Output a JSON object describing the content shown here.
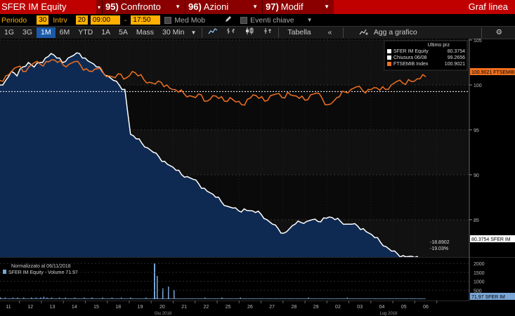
{
  "titlebar": {
    "ticker": "SFER IM Equity",
    "menu1_num": "95)",
    "menu1_label": "Confronto",
    "menu2_num": "96)",
    "menu2_label": "Azioni",
    "menu3_num": "97)",
    "menu3_label": "Modif",
    "right_title": "Graf linea"
  },
  "periodbar": {
    "period_label": "Periodo",
    "period_value": "30",
    "interval_label": "Intrv",
    "interval_value": "20",
    "time_start": "09:00",
    "time_end": "17:50",
    "med_mob": "Med Mob",
    "events": "Eventi chiave"
  },
  "toolbar": {
    "ranges": [
      "1G",
      "3G",
      "1M",
      "6M",
      "YTD",
      "1A",
      "5A",
      "Mass"
    ],
    "active_range": "1M",
    "interval": "30 Min",
    "table": "Tabella",
    "add": "Agg a grafico"
  },
  "legend": {
    "header": "Ultimo prz",
    "rows": [
      {
        "name": "SFER IM Equity",
        "value": "80.3754",
        "color": "#ffffff"
      },
      {
        "name": "Chiusura 06/08",
        "value": "99.2656",
        "color": "#ffffff"
      },
      {
        "name": "FTSEMIB Index",
        "value": "100.9021",
        "color": "#f07020"
      }
    ]
  },
  "tags": {
    "ftsemib": "100.9021 FTSEMIB",
    "sfer": "80.3754  SFER IM",
    "change_abs": "-18.8902",
    "change_pct": "-19.03%",
    "volume": "71.97 SFER IM"
  },
  "volume_legend": {
    "line1": "Normalizzato al 06/11/2018",
    "line2": "SFER IM Equity - Volume 71.97"
  },
  "chart_data": {
    "type": "line",
    "ylim": [
      81,
      105
    ],
    "yticks": [
      85,
      90,
      95,
      100,
      105
    ],
    "reference_line": 99.2656,
    "series": [
      {
        "name": "SFER IM Equity",
        "color": "#ffffff",
        "values": [
          100,
          100.5,
          101.5,
          101,
          102,
          102.5,
          102,
          102.5,
          103,
          103.5,
          103,
          102.5,
          103,
          103.3,
          103.5,
          103,
          102.5,
          102,
          101.5,
          101,
          100.5,
          100,
          99.5,
          94.5,
          94,
          93.5,
          93,
          92.5,
          92,
          91.5,
          91,
          90.5,
          90,
          89.8,
          89.5,
          89,
          88.5,
          88,
          87.5,
          87,
          86.5,
          86.3,
          86,
          86.2,
          86,
          85.8,
          85.6,
          85,
          84.5,
          84,
          83.5,
          84,
          84.5,
          84.7,
          84.8,
          85,
          84.8,
          85.2,
          85.3,
          85,
          84.8,
          84.5,
          84.5,
          84.3,
          84,
          83.5,
          83,
          82.5,
          82,
          81.5,
          81.2,
          81,
          80.9,
          80.8,
          80.5,
          80.4
        ]
      },
      {
        "name": "FTSEMIB Index",
        "color": "#f07020",
        "values": [
          100.5,
          101,
          101.5,
          102,
          101.5,
          102,
          102.5,
          102.3,
          102.6,
          102.8,
          102.5,
          102.2,
          102.3,
          102.6,
          102.2,
          101.8,
          101.5,
          101.8,
          101.3,
          101,
          100.8,
          101.2,
          100.8,
          101.5,
          101,
          100.6,
          100.3,
          100.1,
          100.3,
          100,
          99.5,
          99.2,
          99,
          98.8,
          98.6,
          98.9,
          98.2,
          98.8,
          98.5,
          98.2,
          98.6,
          98.1,
          97.8,
          98.4,
          98.9,
          98.5,
          98.2,
          98.8,
          99,
          98.6,
          99.2,
          98.8,
          98.5,
          98.3,
          98.9,
          99.1,
          98.5,
          97.8,
          98.2,
          98.7,
          99.2,
          99.5,
          99.8,
          99.4,
          99.5,
          99.7,
          99.4,
          99.5,
          100,
          100.4,
          100.2,
          100.6,
          100.4,
          100.7,
          100.9
        ]
      }
    ],
    "x_tick_labels": [
      "11",
      "12",
      "13",
      "14",
      "15",
      "18",
      "19",
      "20",
      "21",
      "22",
      "25",
      "26",
      "27",
      "28",
      "29",
      "02",
      "03",
      "04",
      "05",
      "06"
    ],
    "x_group_labels": [
      "Giu 2018",
      "Lug 2018"
    ],
    "volume_ticks": [
      "2000",
      "1500",
      "1000",
      "500"
    ],
    "volume_values": [
      2,
      1,
      1,
      2,
      1,
      1,
      1,
      1,
      2,
      1,
      1,
      2,
      1,
      1,
      1,
      2,
      1,
      1,
      1,
      1,
      2,
      1,
      1,
      2,
      1,
      1,
      2,
      1,
      3,
      1,
      2,
      1,
      1,
      2,
      1,
      1,
      1,
      1,
      2,
      1,
      1,
      1,
      2,
      1,
      1,
      1,
      1,
      1,
      2,
      1,
      1,
      1,
      1,
      1,
      2,
      1,
      1,
      1,
      1,
      2,
      1,
      1,
      1,
      1,
      1,
      1,
      2,
      1,
      1,
      1,
      1,
      1,
      2,
      1,
      1,
      1,
      1,
      1,
      2,
      1,
      1,
      1,
      1,
      1,
      2,
      1,
      1,
      1,
      1,
      1,
      1,
      1,
      1,
      1,
      2,
      1,
      1,
      1,
      1,
      1,
      1,
      2,
      1,
      1,
      1,
      1,
      1,
      1,
      1,
      1,
      1,
      1,
      2,
      1,
      1,
      1,
      1,
      1,
      1,
      1,
      1,
      1,
      1,
      1,
      1,
      1,
      1,
      1,
      1,
      1,
      1,
      1,
      2,
      1,
      1,
      1,
      1,
      1,
      1,
      1,
      1,
      1,
      1,
      2,
      1,
      1,
      1,
      1,
      1,
      1,
      1,
      1,
      1,
      1,
      1,
      2,
      1,
      1,
      1,
      1,
      1,
      1,
      1,
      1,
      1,
      1,
      1,
      1,
      1,
      1,
      1,
      1,
      1,
      1,
      1,
      1,
      1,
      1,
      1,
      1,
      1,
      1,
      1,
      1,
      1,
      1,
      1,
      1,
      1,
      1,
      1,
      1,
      1,
      1,
      1,
      1,
      1,
      1,
      1,
      2,
      1,
      1,
      1,
      1,
      1,
      1,
      1,
      1,
      1,
      1,
      1,
      1,
      1,
      1,
      1,
      1,
      1,
      1,
      1,
      1,
      1,
      1,
      1,
      1,
      2,
      1,
      1,
      1,
      1,
      1,
      1,
      1,
      1,
      1,
      1,
      1,
      1,
      1,
      1,
      1,
      1,
      1,
      1,
      1,
      1,
      1,
      1,
      1,
      1,
      1,
      1,
      1,
      1,
      1,
      1,
      1,
      1,
      1,
      1,
      1,
      1,
      1,
      1,
      1,
      1,
      1,
      1,
      1,
      1,
      1,
      1,
      1,
      1,
      1,
      1
    ],
    "volume_spike_index": 28,
    "volume_spike_value": 2000,
    "volume_secondary": [
      {
        "index": 29,
        "value": 1300
      },
      {
        "index": 30,
        "value": 600
      },
      {
        "index": 34,
        "value": 700
      },
      {
        "index": 38,
        "value": 500
      }
    ]
  }
}
